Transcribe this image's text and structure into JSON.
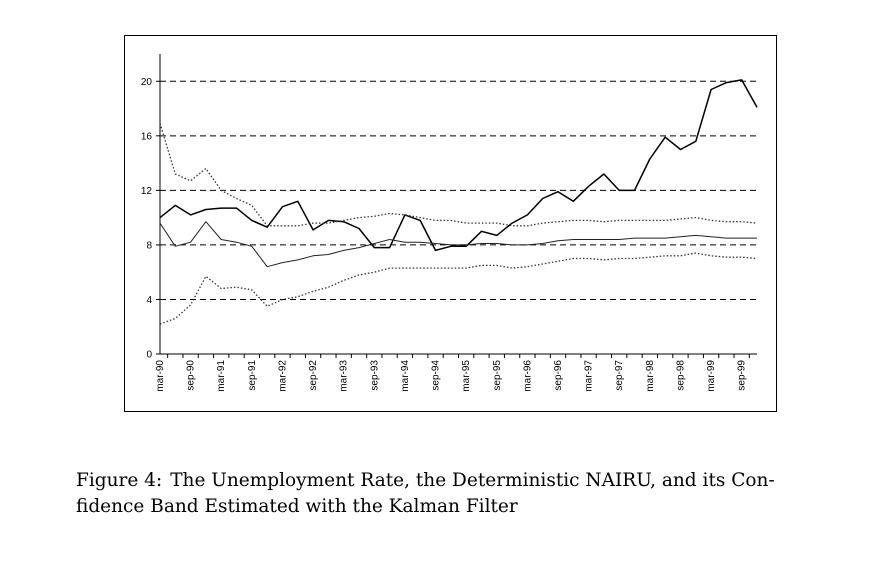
{
  "chart_data": {
    "type": "line",
    "title": "",
    "xlabel": "",
    "ylabel": "",
    "ylim": [
      0,
      22
    ],
    "yticks": [
      0,
      4,
      8,
      12,
      16,
      20
    ],
    "grid": "horizontal dashed",
    "x_labels": [
      "mar-90",
      "sep-90",
      "mar-91",
      "sep-91",
      "mar-92",
      "sep-92",
      "mar-93",
      "sep-93",
      "mar-94",
      "sep-94",
      "mar-95",
      "sep-95",
      "mar-96",
      "sep-96",
      "mar-97",
      "sep-97",
      "mar-98",
      "sep-98",
      "mar-99",
      "sep-99"
    ],
    "series": [
      {
        "style": "solid-thick",
        "color": "#000000",
        "values": [
          10.0,
          10.9,
          10.2,
          10.6,
          10.7,
          10.7,
          9.8,
          9.3,
          10.8,
          11.2,
          9.1,
          9.8,
          9.7,
          9.2,
          7.8,
          7.8,
          10.2,
          9.8,
          7.6,
          7.9,
          7.9,
          9.0,
          8.7,
          9.6,
          10.2,
          11.4,
          11.9,
          11.2,
          12.3,
          13.2,
          12.0,
          12.0,
          14.3,
          15.9,
          15.0,
          15.6,
          19.4,
          19.9,
          20.1,
          18.1
        ]
      },
      {
        "style": "solid-thin",
        "color": "#222222",
        "values": [
          9.6,
          7.9,
          8.2,
          9.7,
          8.4,
          8.2,
          7.9,
          6.4,
          6.7,
          6.9,
          7.2,
          7.3,
          7.6,
          7.8,
          8.1,
          8.4,
          8.2,
          8.2,
          8.1,
          8.0,
          8.0,
          8.1,
          8.1,
          8.0,
          8.0,
          8.1,
          8.3,
          8.4,
          8.4,
          8.4,
          8.4,
          8.5,
          8.5,
          8.5,
          8.6,
          8.7,
          8.6,
          8.5,
          8.5,
          8.5
        ]
      },
      {
        "style": "dotted-upper",
        "color": "#333333",
        "values": [
          16.9,
          13.2,
          12.7,
          13.6,
          12.0,
          11.4,
          10.9,
          9.4,
          9.4,
          9.4,
          9.6,
          9.6,
          9.8,
          10.0,
          10.1,
          10.3,
          10.2,
          10.0,
          9.8,
          9.8,
          9.6,
          9.6,
          9.6,
          9.4,
          9.4,
          9.6,
          9.7,
          9.8,
          9.8,
          9.7,
          9.8,
          9.8,
          9.8,
          9.8,
          9.9,
          10.0,
          9.8,
          9.7,
          9.7,
          9.6
        ]
      },
      {
        "style": "dotted-lower",
        "color": "#333333",
        "values": [
          2.2,
          2.6,
          3.6,
          5.7,
          4.8,
          4.9,
          4.7,
          3.5,
          4.0,
          4.2,
          4.6,
          4.9,
          5.4,
          5.8,
          6.0,
          6.3,
          6.3,
          6.3,
          6.3,
          6.3,
          6.3,
          6.5,
          6.5,
          6.3,
          6.4,
          6.6,
          6.8,
          7.0,
          7.0,
          6.9,
          7.0,
          7.0,
          7.1,
          7.2,
          7.2,
          7.4,
          7.2,
          7.1,
          7.1,
          7.0
        ]
      }
    ]
  },
  "caption": {
    "label": "Figure 4:",
    "text": "The Unemployment Rate, the Deterministic NAIRU, and its Con-fidence Band Estimated with the Kalman Filter"
  }
}
